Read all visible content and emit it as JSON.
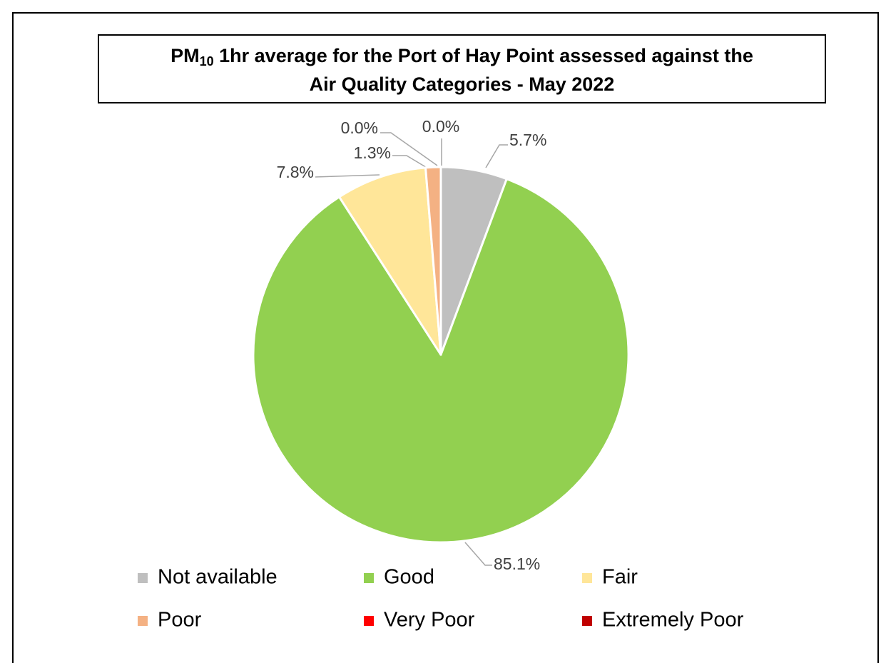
{
  "chart_data": {
    "type": "pie",
    "title_parts": [
      "PM",
      "10",
      " 1hr average for the Port of Hay Point assessed against the",
      "Air Quality Categories - May 2022"
    ],
    "categories": [
      "Not available",
      "Good",
      "Fair",
      "Poor",
      "Very Poor",
      "Extremely Poor"
    ],
    "values": [
      5.7,
      85.1,
      7.8,
      1.3,
      0.0,
      0.0
    ],
    "value_labels": [
      "5.7%",
      "85.1%",
      "7.8%",
      "1.3%",
      "0.0%",
      "0.0%"
    ],
    "colors": [
      "#bfbfbf",
      "#92d050",
      "#ffe699",
      "#f4b183",
      "#ff0000",
      "#c00000"
    ],
    "legend": "bottom"
  }
}
